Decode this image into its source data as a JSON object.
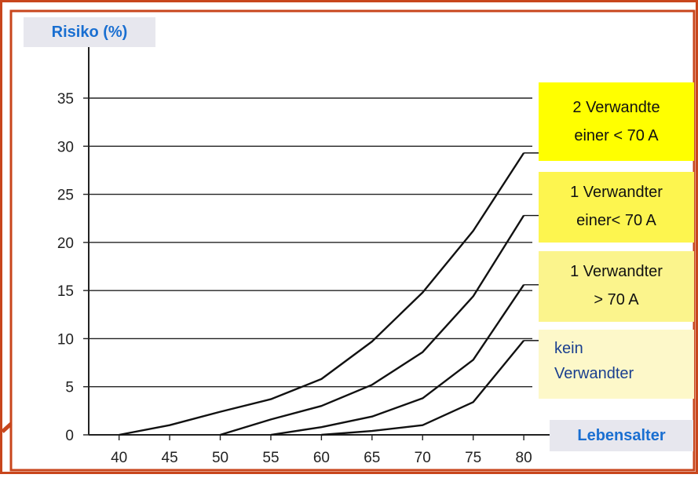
{
  "frame": {
    "border_color": "#c8461c",
    "page_background": "#ffffff"
  },
  "chart_data": {
    "type": "line",
    "ylabel": "Risiko (%)",
    "xlabel": "Lebensalter",
    "x": [
      40,
      45,
      50,
      55,
      60,
      65,
      70,
      75,
      80
    ],
    "xlim": [
      37,
      81
    ],
    "ylim": [
      0,
      36
    ],
    "yticks": [
      0,
      5,
      10,
      15,
      20,
      25,
      30,
      35
    ],
    "grid": true,
    "legend_position": "right",
    "series": [
      {
        "label_lines": [
          "2 Verwandte",
          "einer < 70 A"
        ],
        "background": "#ffff00",
        "points": [
          [
            40,
            0
          ],
          [
            45,
            1
          ],
          [
            50,
            2.4
          ],
          [
            55,
            3.7
          ],
          [
            60,
            5.8
          ],
          [
            65,
            9.7
          ],
          [
            70,
            14.8
          ],
          [
            75,
            21.2
          ],
          [
            80,
            29.3
          ]
        ]
      },
      {
        "label_lines": [
          "1 Verwandter",
          "einer< 70 A"
        ],
        "background": "#fdf54f",
        "points": [
          [
            50,
            0
          ],
          [
            55,
            1.6
          ],
          [
            60,
            3
          ],
          [
            65,
            5.2
          ],
          [
            70,
            8.6
          ],
          [
            75,
            14.4
          ],
          [
            80,
            22.8
          ]
        ]
      },
      {
        "label_lines": [
          "1 Verwandter",
          "> 70 A"
        ],
        "background": "#fbf48c",
        "points": [
          [
            55,
            0
          ],
          [
            60,
            0.8
          ],
          [
            65,
            1.9
          ],
          [
            70,
            3.8
          ],
          [
            75,
            7.8
          ],
          [
            80,
            15.6
          ]
        ]
      },
      {
        "label_lines": [
          "kein",
          "Verwandter"
        ],
        "background": "#fdf8c9",
        "points": [
          [
            60,
            0
          ],
          [
            65,
            0.4
          ],
          [
            70,
            1
          ],
          [
            75,
            3.4
          ],
          [
            80,
            9.8
          ]
        ]
      }
    ]
  }
}
